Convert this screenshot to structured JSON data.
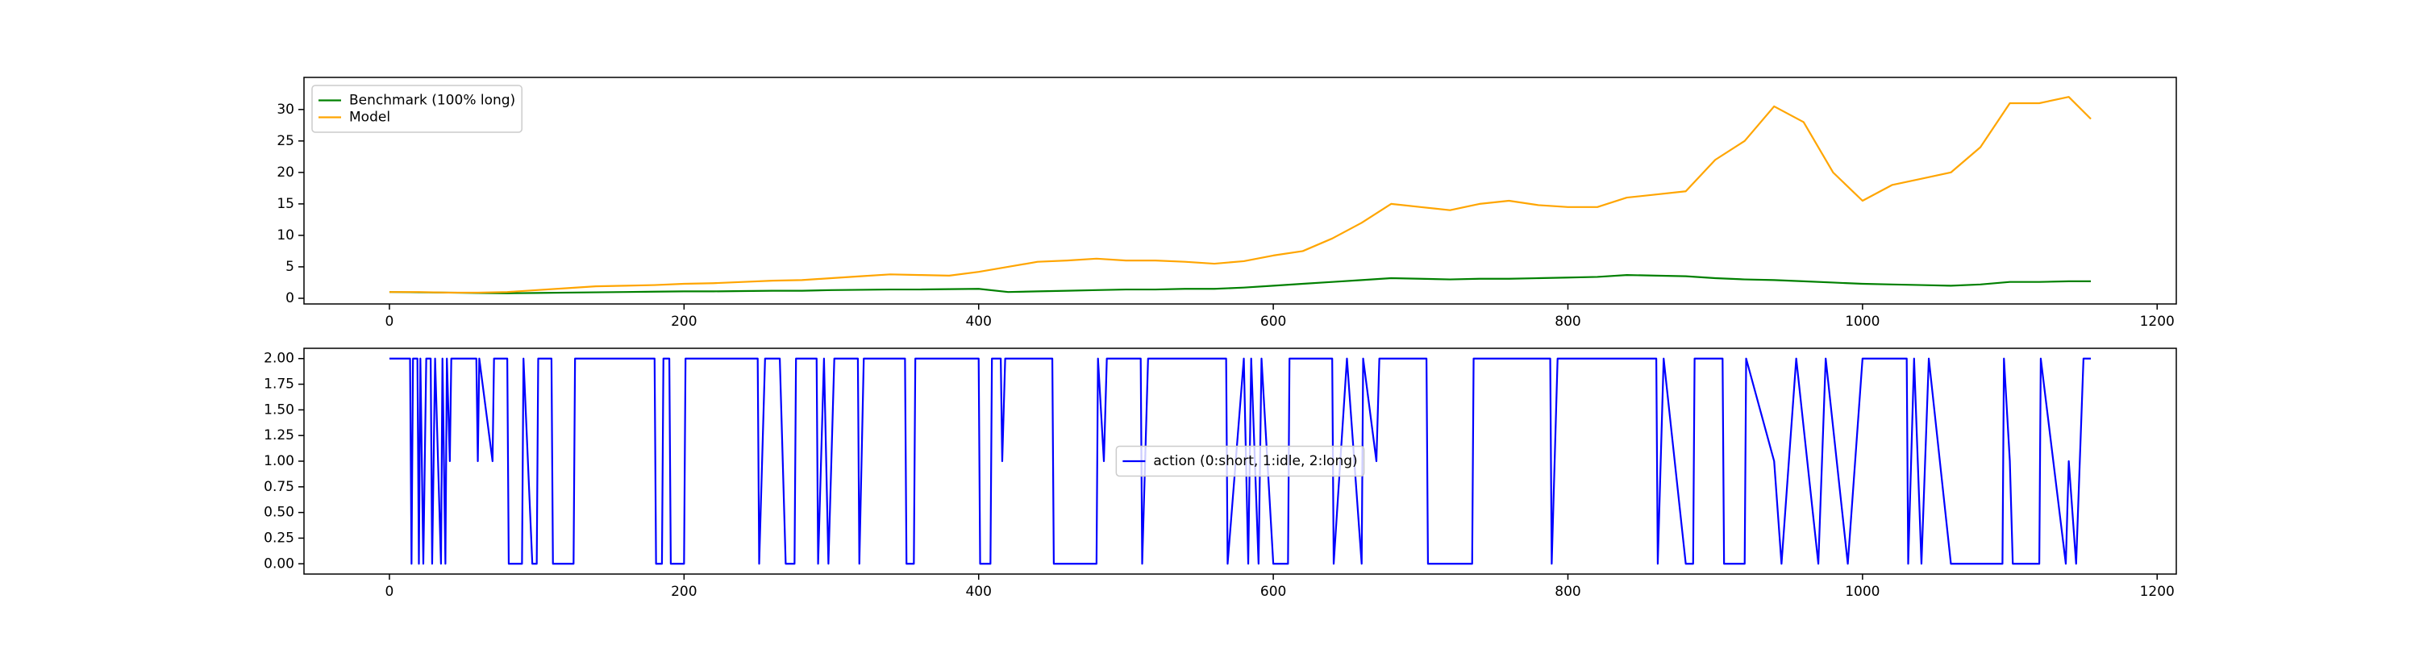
{
  "chart_data": [
    {
      "type": "line",
      "x": [
        0,
        20,
        40,
        60,
        80,
        100,
        120,
        140,
        160,
        180,
        200,
        220,
        240,
        260,
        280,
        300,
        320,
        340,
        360,
        380,
        400,
        420,
        440,
        460,
        480,
        500,
        520,
        540,
        560,
        580,
        600,
        620,
        640,
        660,
        680,
        700,
        720,
        740,
        760,
        780,
        800,
        820,
        840,
        860,
        880,
        900,
        920,
        940,
        960,
        980,
        1000,
        1020,
        1040,
        1060,
        1080,
        1100,
        1120,
        1140,
        1155
      ],
      "series": [
        {
          "name": "Benchmark (100% long)",
          "color": "#008000",
          "values": [
            1,
            0.95,
            0.9,
            0.85,
            0.8,
            0.85,
            0.9,
            0.95,
            1,
            1.05,
            1.1,
            1.1,
            1.15,
            1.2,
            1.2,
            1.3,
            1.35,
            1.4,
            1.4,
            1.45,
            1.5,
            1,
            1.1,
            1.2,
            1.3,
            1.4,
            1.4,
            1.5,
            1.5,
            1.7,
            2,
            2.3,
            2.6,
            2.9,
            3.2,
            3.1,
            3,
            3.1,
            3.1,
            3.2,
            3.3,
            3.4,
            3.7,
            3.6,
            3.5,
            3.2,
            3,
            2.9,
            2.7,
            2.5,
            2.3,
            2.2,
            2.1,
            2,
            2.2,
            2.6,
            2.6,
            2.7,
            2.7
          ]
        },
        {
          "name": "Model",
          "color": "#ffa500",
          "values": [
            1,
            1,
            0.9,
            0.9,
            1,
            1.3,
            1.6,
            1.9,
            2,
            2.1,
            2.3,
            2.4,
            2.6,
            2.8,
            2.9,
            3.2,
            3.5,
            3.8,
            3.7,
            3.6,
            4.2,
            5,
            5.8,
            6,
            6.3,
            6,
            6,
            5.8,
            5.5,
            5.9,
            6.8,
            7.5,
            9.5,
            12,
            15,
            14.5,
            14,
            15,
            15.5,
            14.8,
            14.5,
            14.5,
            16,
            16.5,
            17,
            22,
            25,
            30.5,
            28,
            20,
            15.5,
            18,
            19,
            20,
            24,
            31,
            31,
            32,
            28.5
          ]
        }
      ],
      "xlim": [
        -58,
        1213
      ],
      "xticks": [
        0,
        200,
        400,
        600,
        800,
        1000,
        1200
      ],
      "ylim": [
        -0.9,
        35.1
      ],
      "yticks": [
        0,
        5,
        10,
        15,
        20,
        25,
        30
      ],
      "legend": "upper left"
    },
    {
      "type": "line",
      "x": [
        0,
        14,
        15,
        16,
        19,
        20,
        21,
        23,
        25,
        28,
        29,
        31,
        35,
        36,
        38,
        39,
        41,
        42,
        59,
        60,
        61,
        70,
        71,
        80,
        81,
        90,
        91,
        97,
        100,
        101,
        110,
        111,
        125,
        126,
        180,
        181,
        185,
        186,
        190,
        191,
        200,
        201,
        250,
        251,
        255,
        265,
        267,
        269,
        275,
        276,
        290,
        291,
        295,
        298,
        300,
        302,
        318,
        319,
        322,
        350,
        351,
        356,
        357,
        400,
        401,
        408,
        409,
        415,
        416,
        418,
        450,
        451,
        480,
        481,
        485,
        487,
        510,
        511,
        515,
        568,
        569,
        580,
        583,
        585,
        590,
        592,
        600,
        610,
        611,
        640,
        641,
        650,
        660,
        661,
        670,
        672,
        704,
        705,
        735,
        736,
        788,
        789,
        793,
        860,
        861,
        865,
        880,
        885,
        886,
        905,
        906,
        920,
        921,
        940,
        945,
        950,
        955,
        970,
        975,
        990,
        1000,
        1030,
        1031,
        1035,
        1040,
        1045,
        1060,
        1095,
        1096,
        1100,
        1102,
        1120,
        1121,
        1138,
        1140,
        1145,
        1150,
        1155
      ],
      "series": [
        {
          "name": "action (0:short, 1:idle, 2:long)",
          "color": "#0000ff",
          "values": [
            2,
            2,
            0,
            2,
            2,
            0,
            2,
            0,
            2,
            2,
            0,
            2,
            0,
            2,
            0,
            2,
            1,
            2,
            2,
            1,
            2,
            1,
            2,
            2,
            0,
            0,
            2,
            0,
            0,
            2,
            2,
            0,
            0,
            2,
            2,
            0,
            0,
            2,
            2,
            0,
            0,
            2,
            2,
            0,
            2,
            2,
            1,
            0,
            0,
            2,
            2,
            0,
            2,
            0,
            1,
            2,
            2,
            0,
            2,
            2,
            0,
            0,
            2,
            2,
            0,
            0,
            2,
            2,
            1,
            2,
            2,
            0,
            0,
            2,
            1,
            2,
            2,
            0,
            2,
            2,
            0,
            2,
            0,
            2,
            0,
            2,
            0,
            0,
            2,
            2,
            0,
            2,
            0,
            2,
            1,
            2,
            2,
            0,
            0,
            2,
            2,
            0,
            2,
            2,
            0,
            2,
            0,
            0,
            2,
            2,
            0,
            0,
            2,
            1,
            0,
            1,
            2,
            0,
            2,
            0,
            2,
            2,
            0,
            2,
            0,
            2,
            0,
            0,
            2,
            1,
            0,
            0,
            2,
            0,
            1,
            0,
            2,
            2
          ]
        }
      ],
      "xlim": [
        -58,
        1213
      ],
      "xticks": [
        0,
        200,
        400,
        600,
        800,
        1000,
        1200
      ],
      "ylim": [
        -0.1,
        2.1
      ],
      "yticks": [
        {
          "value": 0,
          "label": "0.00"
        },
        {
          "value": 0.25,
          "label": "0.25"
        },
        {
          "value": 0.5,
          "label": "0.50"
        },
        {
          "value": 0.75,
          "label": "0.75"
        },
        {
          "value": 1,
          "label": "1.00"
        },
        {
          "value": 1.25,
          "label": "1.25"
        },
        {
          "value": 1.5,
          "label": "1.50"
        },
        {
          "value": 1.75,
          "label": "1.75"
        },
        {
          "value": 2,
          "label": "2.00"
        }
      ],
      "legend": "center"
    }
  ]
}
